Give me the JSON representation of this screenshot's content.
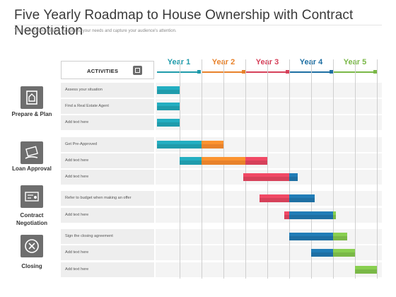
{
  "title": "Five Yearly Roadmap to House Ownership with Contract Negotiation",
  "subtitle": "This slide 100% editable. Adapt it to your needs and capture your audience's attention.",
  "activities_header": "ACTIVITIES",
  "years": [
    {
      "label": "Year 1",
      "color": "#1f9bab"
    },
    {
      "label": "Year 2",
      "color": "#e8822b"
    },
    {
      "label": "Year 3",
      "color": "#d6415a"
    },
    {
      "label": "Year 4",
      "color": "#1e6fa3"
    },
    {
      "label": "Year 5",
      "color": "#7ab847"
    }
  ],
  "phases": [
    {
      "label": "Prepare & Plan",
      "icon": "house-document-icon"
    },
    {
      "label": "Loan Approval",
      "icon": "money-hand-icon"
    },
    {
      "label": "Contract Negotiation",
      "icon": "contract-card-icon"
    },
    {
      "label": "Closing",
      "icon": "close-circle-icon"
    }
  ],
  "rows": [
    {
      "label": "Assess your situation"
    },
    {
      "label": "Find a Real Estate Agent"
    },
    {
      "label": "Add text here"
    },
    {
      "label": "Get Pre-Approved"
    },
    {
      "label": "Add text here"
    },
    {
      "label": "Add text here"
    },
    {
      "label": "Refer to budget when making an offer"
    },
    {
      "label": "Add text here"
    },
    {
      "label": "Sign the closing agreement"
    },
    {
      "label": "Add text here"
    },
    {
      "label": "Add text here"
    }
  ]
}
